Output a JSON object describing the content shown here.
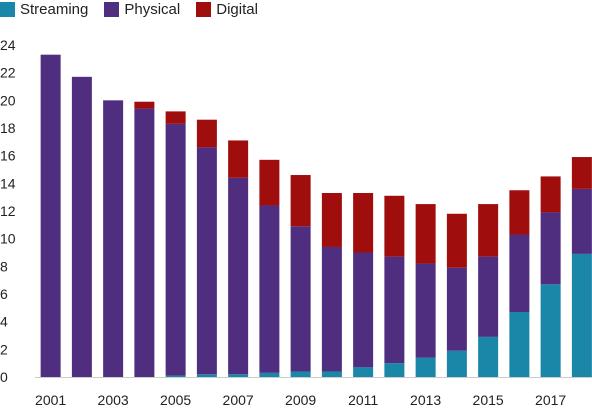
{
  "chart_data": {
    "type": "bar",
    "stacked": true,
    "categories": [
      "2001",
      "2002",
      "2003",
      "2004",
      "2005",
      "2006",
      "2007",
      "2008",
      "2009",
      "2010",
      "2011",
      "2012",
      "2013",
      "2014",
      "2015",
      "2016",
      "2017",
      "2018"
    ],
    "x_tick_labels": [
      "2001",
      "2003",
      "2005",
      "2007",
      "2009",
      "2011",
      "2013",
      "2015",
      "2017"
    ],
    "ylim": [
      0,
      24
    ],
    "y_ticks": [
      0,
      2,
      4,
      6,
      8,
      10,
      12,
      14,
      16,
      18,
      20,
      22,
      24
    ],
    "legend_position": "top-left",
    "grid": false,
    "series": [
      {
        "name": "Streaming",
        "color": "#1a86a8",
        "values": [
          0,
          0,
          0,
          0,
          0.1,
          0.2,
          0.2,
          0.3,
          0.4,
          0.4,
          0.7,
          1.0,
          1.4,
          1.9,
          2.9,
          4.7,
          6.7,
          8.9
        ]
      },
      {
        "name": "Physical",
        "color": "#4f2d7f",
        "values": [
          23.3,
          21.7,
          20.0,
          19.4,
          18.2,
          16.4,
          14.2,
          12.1,
          10.5,
          9.0,
          8.3,
          7.7,
          6.8,
          6.0,
          5.8,
          5.6,
          5.2,
          4.7
        ]
      },
      {
        "name": "Digital",
        "color": "#a00d0d",
        "values": [
          0,
          0,
          0,
          0.5,
          0.9,
          2.0,
          2.7,
          3.3,
          3.7,
          3.9,
          4.3,
          4.4,
          4.3,
          3.9,
          3.8,
          3.2,
          2.6,
          2.3
        ]
      }
    ]
  }
}
